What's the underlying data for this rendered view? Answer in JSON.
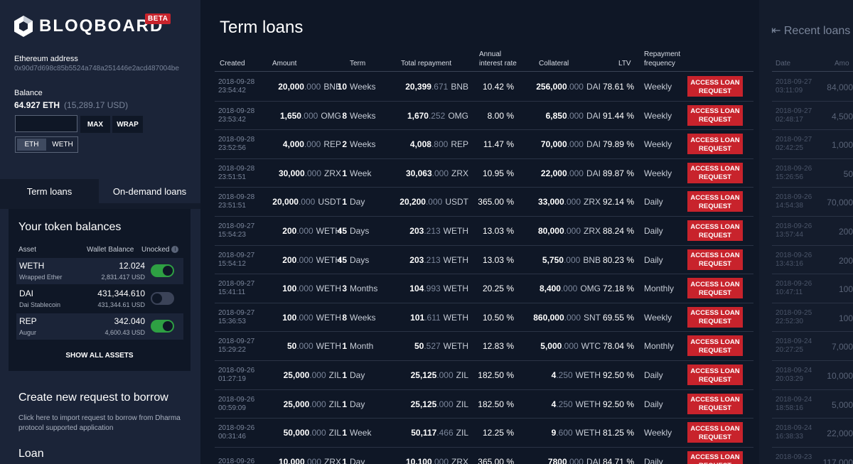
{
  "brand": {
    "name": "BLOQBOARD",
    "badge": "BETA"
  },
  "wallet": {
    "address_label": "Ethereum address",
    "address": "0x90d7d698c85b5524a748a251446e2acd487004be",
    "balance_label": "Balance",
    "balance": "64.927 ETH",
    "balance_usd": "(15,289.17 USD)",
    "max_label": "MAX",
    "wrap_label": "WRAP",
    "seg_eth": "ETH",
    "seg_weth": "WETH"
  },
  "tabs": {
    "term": "Term loans",
    "ondemand": "On-demand loans"
  },
  "tokens": {
    "title": "Your token balances",
    "headers": {
      "asset": "Asset",
      "wallet": "Wallet Balance",
      "unlocked": "Unocked"
    },
    "rows": [
      {
        "symbol": "WETH",
        "name": "Wrapped Ether",
        "balance": "12.024",
        "usd": "2,831.417 USD",
        "unlocked": true
      },
      {
        "symbol": "DAI",
        "name": "Dai Stablecoin",
        "balance": "431,344.610",
        "usd": "431,344.61 USD",
        "unlocked": false
      },
      {
        "symbol": "REP",
        "name": "Augur",
        "balance": "342.040",
        "usd": "4,600.43 USD",
        "unlocked": true
      }
    ],
    "show_all": "SHOW ALL ASSETS"
  },
  "create": {
    "title": "Create new request to borrow",
    "desc": "Click here to import request to borrow from Dharma protocol supported application",
    "loan_heading": "Loan"
  },
  "main": {
    "title": "Term loans",
    "headers": {
      "created": "Created",
      "amount": "Amount",
      "term": "Term",
      "total": "Total repayment",
      "rate1": "Annual",
      "rate2": "interest rate",
      "collateral": "Collateral",
      "ltv": "LTV",
      "freq1": "Repayment",
      "freq2": "frequency"
    },
    "action_label1": "ACCESS LOAN",
    "action_label2": "REQUEST",
    "rows": [
      {
        "d": "2018-09-28",
        "t": "23:54:42",
        "ai": "20,000",
        "ad": ".000",
        "au": "BNB",
        "tn": "10",
        "tu": "Weeks",
        "ri": "20,399",
        "rd": ".671",
        "ru": "BNB",
        "rate": "10.42 %",
        "ci": "256,000",
        "cd": ".000",
        "cu": "DAI",
        "ltv": "78.61 %",
        "freq": "Weekly"
      },
      {
        "d": "2018-09-28",
        "t": "23:53:42",
        "ai": "1,650",
        "ad": ".000",
        "au": "OMG",
        "tn": "8",
        "tu": "Weeks",
        "ri": "1,670",
        "rd": ".252",
        "ru": "OMG",
        "rate": "8.00 %",
        "ci": "6,850",
        "cd": ".000",
        "cu": "DAI",
        "ltv": "91.44 %",
        "freq": "Weekly"
      },
      {
        "d": "2018-09-28",
        "t": "23:52:56",
        "ai": "4,000",
        "ad": ".000",
        "au": "REP",
        "tn": "2",
        "tu": "Weeks",
        "ri": "4,008",
        "rd": ".800",
        "ru": "REP",
        "rate": "11.47 %",
        "ci": "70,000",
        "cd": ".000",
        "cu": "DAI",
        "ltv": "79.89 %",
        "freq": "Weekly"
      },
      {
        "d": "2018-09-28",
        "t": "23:51:51",
        "ai": "30,000",
        "ad": ".000",
        "au": "ZRX",
        "tn": "1",
        "tu": "Week",
        "ri": "30,063",
        "rd": ".000",
        "ru": "ZRX",
        "rate": "10.95 %",
        "ci": "22,000",
        "cd": ".000",
        "cu": "DAI",
        "ltv": "89.87 %",
        "freq": "Weekly"
      },
      {
        "d": "2018-09-28",
        "t": "23:51:51",
        "ai": "20,000",
        "ad": ".000",
        "au": "USDT",
        "tn": "1",
        "tu": "Day",
        "ri": "20,200",
        "rd": ".000",
        "ru": "USDT",
        "rate": "365.00 %",
        "ci": "33,000",
        "cd": ".000",
        "cu": "ZRX",
        "ltv": "92.14 %",
        "freq": "Daily"
      },
      {
        "d": "2018-09-27",
        "t": "15:54:23",
        "ai": "200",
        "ad": ".000",
        "au": "WETH",
        "tn": "45",
        "tu": "Days",
        "ri": "203",
        "rd": ".213",
        "ru": "WETH",
        "rate": "13.03 %",
        "ci": "80,000",
        "cd": ".000",
        "cu": "ZRX",
        "ltv": "88.24 %",
        "freq": "Daily"
      },
      {
        "d": "2018-09-27",
        "t": "15:54:12",
        "ai": "200",
        "ad": ".000",
        "au": "WETH",
        "tn": "45",
        "tu": "Days",
        "ri": "203",
        "rd": ".213",
        "ru": "WETH",
        "rate": "13.03 %",
        "ci": "5,750",
        "cd": ".000",
        "cu": "BNB",
        "ltv": "80.23 %",
        "freq": "Daily"
      },
      {
        "d": "2018-09-27",
        "t": "15:41:11",
        "ai": "100",
        "ad": ".000",
        "au": "WETH",
        "tn": "3",
        "tu": "Months",
        "ri": "104",
        "rd": ".993",
        "ru": "WETH",
        "rate": "20.25 %",
        "ci": "8,400",
        "cd": ".000",
        "cu": "OMG",
        "ltv": "72.18 %",
        "freq": "Monthly"
      },
      {
        "d": "2018-09-27",
        "t": "15:36:53",
        "ai": "100",
        "ad": ".000",
        "au": "WETH",
        "tn": "8",
        "tu": "Weeks",
        "ri": "101",
        "rd": ".611",
        "ru": "WETH",
        "rate": "10.50 %",
        "ci": "860,000",
        "cd": ".000",
        "cu": "SNT",
        "ltv": "69.55 %",
        "freq": "Weekly"
      },
      {
        "d": "2018-09-27",
        "t": "15:29:22",
        "ai": "50",
        "ad": ".000",
        "au": "WETH",
        "tn": "1",
        "tu": "Month",
        "ri": "50",
        "rd": ".527",
        "ru": "WETH",
        "rate": "12.83 %",
        "ci": "5,000",
        "cd": ".000",
        "cu": "WTC",
        "ltv": "78.04 %",
        "freq": "Monthly"
      },
      {
        "d": "2018-09-26",
        "t": "01:27:19",
        "ai": "25,000",
        "ad": ".000",
        "au": "ZIL",
        "tn": "1",
        "tu": "Day",
        "ri": "25,125",
        "rd": ".000",
        "ru": "ZIL",
        "rate": "182.50 %",
        "ci": "4",
        "cd": ".250",
        "cu": "WETH",
        "ltv": "92.50 %",
        "freq": "Daily"
      },
      {
        "d": "2018-09-26",
        "t": "00:59:09",
        "ai": "25,000",
        "ad": ".000",
        "au": "ZIL",
        "tn": "1",
        "tu": "Day",
        "ri": "25,125",
        "rd": ".000",
        "ru": "ZIL",
        "rate": "182.50 %",
        "ci": "4",
        "cd": ".250",
        "cu": "WETH",
        "ltv": "92.50 %",
        "freq": "Daily"
      },
      {
        "d": "2018-09-26",
        "t": "00:31:46",
        "ai": "50,000",
        "ad": ".000",
        "au": "ZIL",
        "tn": "1",
        "tu": "Week",
        "ri": "50,117",
        "rd": ".466",
        "ru": "ZIL",
        "rate": "12.25 %",
        "ci": "9",
        "cd": ".600",
        "cu": "WETH",
        "ltv": "81.25 %",
        "freq": "Weekly"
      },
      {
        "d": "2018-09-26",
        "t": "",
        "ai": "10,000",
        "ad": ".000",
        "au": "ZRX",
        "tn": "1",
        "tu": "Day",
        "ri": "10,100",
        "rd": ".000",
        "ru": "ZRX",
        "rate": "365.00 %",
        "ci": "7800",
        "cd": ".000",
        "cu": "DAI",
        "ltv": "84.71 %",
        "freq": "Daily"
      }
    ]
  },
  "recent": {
    "title": "Recent loans",
    "date_header": "Date",
    "amount_header": "Amo",
    "rows": [
      {
        "d": "2018-09-27",
        "t": "03:11:09",
        "a": "84,000"
      },
      {
        "d": "2018-09-27",
        "t": "02:48:17",
        "a": "4,500"
      },
      {
        "d": "2018-09-27",
        "t": "02:42:25",
        "a": "1,000"
      },
      {
        "d": "2018-09-26",
        "t": "15:26:56",
        "a": "50"
      },
      {
        "d": "2018-09-26",
        "t": "14:54:38",
        "a": "70,000"
      },
      {
        "d": "2018-09-26",
        "t": "13:57:44",
        "a": "200"
      },
      {
        "d": "2018-09-26",
        "t": "13:43:16",
        "a": "200"
      },
      {
        "d": "2018-09-26",
        "t": "10:47:11",
        "a": "100"
      },
      {
        "d": "2018-09-25",
        "t": "22:52:30",
        "a": "100"
      },
      {
        "d": "2018-09-24",
        "t": "20:27:25",
        "a": "7,000"
      },
      {
        "d": "2018-09-24",
        "t": "20:03:29",
        "a": "10,000"
      },
      {
        "d": "2018-09-24",
        "t": "18:58:16",
        "a": "5,000"
      },
      {
        "d": "2018-09-24",
        "t": "16:38:33",
        "a": "22,000"
      },
      {
        "d": "2018-09-23",
        "t": "",
        "a": "117,000"
      }
    ]
  }
}
